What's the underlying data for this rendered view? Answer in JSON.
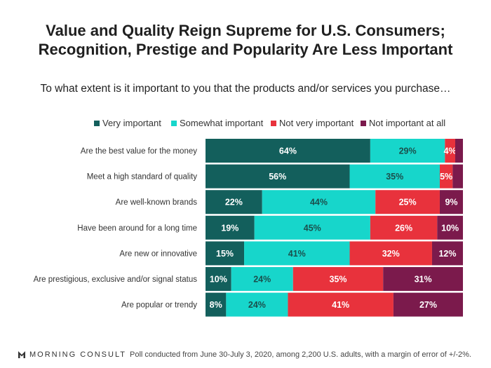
{
  "title_line1": "Value and Quality Reign Supreme for U.S. Consumers;",
  "title_line2": "Recognition, Prestige and Popularity Are Less Important",
  "subtitle": "To what extent is it important to you that the products and/or services you purchase…",
  "footer": {
    "brand": "MORNING CONSULT",
    "note": "Poll conducted from June 30-July 3, 2020, among 2,200 U.S. adults, with a margin of error of +/-2%."
  },
  "colors": {
    "very": "#135f5c",
    "somewhat": "#17d6cb",
    "not_very": "#e8323c",
    "not_at_all": "#7b1a4c"
  },
  "chart_data": {
    "type": "bar",
    "orientation": "horizontal",
    "stacked": true,
    "legend_position": "top",
    "categories": [
      "Are the best value for the money",
      "Meet a high standard of quality",
      "Are well-known brands",
      "Have been around for a long time",
      "Are new or innovative",
      "Are prestigious, exclusive and/or signal status",
      "Are popular or trendy"
    ],
    "series": [
      {
        "name": "Very important",
        "color": "#135f5c",
        "values": [
          64,
          56,
          22,
          19,
          15,
          10,
          8
        ],
        "labels": [
          "64%",
          "56%",
          "22%",
          "19%",
          "15%",
          "10%",
          "8%"
        ]
      },
      {
        "name": "Somewhat important",
        "color": "#17d6cb",
        "values": [
          29,
          35,
          44,
          45,
          41,
          24,
          24
        ],
        "labels": [
          "29%",
          "35%",
          "44%",
          "45%",
          "41%",
          "24%",
          "24%"
        ]
      },
      {
        "name": "Not very important",
        "color": "#e8323c",
        "values": [
          4,
          5,
          25,
          26,
          32,
          35,
          41
        ],
        "labels": [
          "4%",
          "5%",
          "25%",
          "26%",
          "32%",
          "35%",
          "41%"
        ]
      },
      {
        "name": "Not important at all",
        "color": "#7b1a4c",
        "values": [
          3,
          4,
          9,
          10,
          12,
          31,
          27
        ],
        "labels": [
          "",
          "",
          "9%",
          "10%",
          "12%",
          "31%",
          "27%"
        ]
      }
    ]
  }
}
